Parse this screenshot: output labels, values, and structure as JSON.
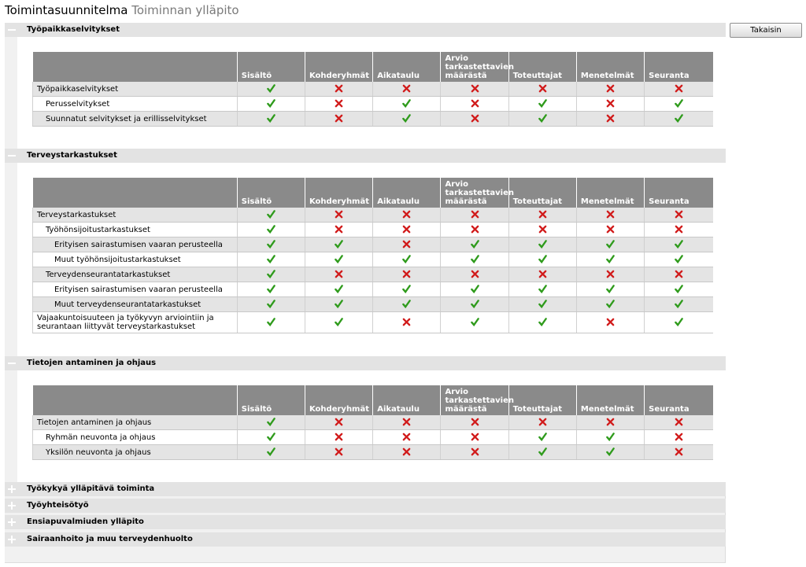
{
  "header": {
    "title": "Toimintasuunnitelma",
    "subtitle": "Toiminnan ylläpito",
    "back_label": "Takaisin"
  },
  "columns": {
    "c1": "Sisältö",
    "c2": "Kohderyhmät",
    "c3": "Aikataulu",
    "c4a": "Arvio",
    "c4b": "tarkastettavien",
    "c4c": "määrästä",
    "c5": "Toteuttajat",
    "c6": "Menetelmät",
    "c7": "Seuranta"
  },
  "sections": [
    {
      "label": "Työpaikkaselvitykset",
      "expanded": true,
      "rows": [
        {
          "name": "Työpaikkaselvitykset",
          "level": 0,
          "status": [
            1,
            0,
            0,
            0,
            0,
            0,
            0
          ]
        },
        {
          "name": "Perusselvitykset",
          "level": 1,
          "status": [
            1,
            0,
            1,
            0,
            1,
            0,
            1
          ]
        },
        {
          "name": "Suunnatut selvitykset ja erillisselvitykset",
          "level": 1,
          "status": [
            1,
            0,
            1,
            0,
            1,
            0,
            1
          ]
        }
      ]
    },
    {
      "label": "Terveystarkastukset",
      "expanded": true,
      "rows": [
        {
          "name": "Terveystarkastukset",
          "level": 0,
          "status": [
            1,
            0,
            0,
            0,
            0,
            0,
            0
          ]
        },
        {
          "name": "Työhönsijoitustarkastukset",
          "level": 1,
          "status": [
            1,
            0,
            0,
            0,
            0,
            0,
            0
          ]
        },
        {
          "name": "Erityisen sairastumisen vaaran perusteella",
          "level": 2,
          "status": [
            1,
            1,
            0,
            1,
            1,
            1,
            1
          ]
        },
        {
          "name": "Muut työhönsijoitustarkastukset",
          "level": 2,
          "status": [
            1,
            1,
            1,
            1,
            1,
            1,
            1
          ]
        },
        {
          "name": "Terveydenseurantatarkastukset",
          "level": 1,
          "status": [
            1,
            0,
            0,
            0,
            0,
            0,
            0
          ]
        },
        {
          "name": "Erityisen sairastumisen vaaran perusteella",
          "level": 2,
          "status": [
            1,
            1,
            1,
            1,
            1,
            1,
            1
          ]
        },
        {
          "name": "Muut terveydenseurantatarkastukset",
          "level": 2,
          "status": [
            1,
            1,
            1,
            1,
            1,
            1,
            1
          ]
        },
        {
          "name": "Vajaakuntoisuuteen ja työkyvyn arviointiin ja seurantaan liittyvät terveystarkastukset",
          "level": 0,
          "status": [
            1,
            1,
            0,
            1,
            1,
            0,
            1
          ]
        }
      ]
    },
    {
      "label": "Tietojen antaminen ja ohjaus",
      "expanded": true,
      "rows": [
        {
          "name": "Tietojen antaminen ja ohjaus",
          "level": 0,
          "status": [
            1,
            0,
            0,
            0,
            0,
            0,
            0
          ]
        },
        {
          "name": "Ryhmän neuvonta ja ohjaus",
          "level": 1,
          "status": [
            1,
            0,
            0,
            0,
            1,
            1,
            0
          ]
        },
        {
          "name": "Yksilön neuvonta ja ohjaus",
          "level": 1,
          "status": [
            1,
            0,
            0,
            0,
            1,
            1,
            0
          ]
        }
      ]
    },
    {
      "label": "Työkykyä ylläpitävä toiminta",
      "expanded": false,
      "rows": []
    },
    {
      "label": "Työyhteisötyö",
      "expanded": false,
      "rows": []
    },
    {
      "label": "Ensiapuvalmiuden ylläpito",
      "expanded": false,
      "rows": []
    },
    {
      "label": "Sairaanhoito ja muu terveydenhuolto",
      "expanded": false,
      "rows": []
    }
  ]
}
